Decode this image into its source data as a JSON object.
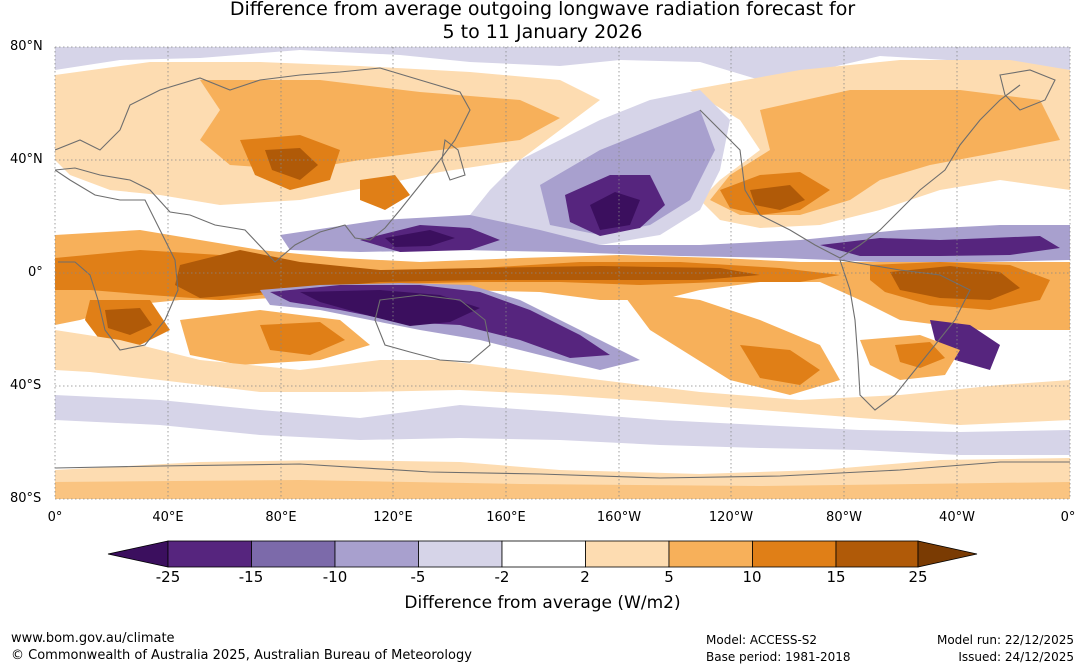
{
  "title": {
    "line1": "Difference from average outgoing longwave radiation forecast for",
    "line2": "5 to 11 January 2026"
  },
  "lat_labels": [
    "80°N",
    "40°N",
    "0°",
    "40°S",
    "80°S"
  ],
  "lon_labels": [
    "0°",
    "40°E",
    "80°E",
    "120°E",
    "160°E",
    "160°W",
    "120°W",
    "80°W",
    "40°W",
    "0°"
  ],
  "colorbar": {
    "title": "Difference from average (W/m2)",
    "ticks": [
      "-25",
      "-15",
      "-10",
      "-5",
      "-2",
      "2",
      "5",
      "10",
      "15",
      "25"
    ],
    "colors": [
      "#3b0f5e",
      "#56257e",
      "#7c6aaa",
      "#a8a0ce",
      "#d6d4e8",
      "#ffffff",
      "#fddcb1",
      "#f7b05a",
      "#e07f17",
      "#b05a08",
      "#7a3b03"
    ]
  },
  "footer": {
    "url": "www.bom.gov.au/climate",
    "copyright": "© Commonwealth of Australia 2025, Australian Bureau of Meteorology",
    "model": "Model: ACCESS-S2",
    "base_period": "Base period: 1981-2018",
    "model_run": "Model run: 22/12/2025",
    "issued": "Issued: 24/12/2025"
  }
}
